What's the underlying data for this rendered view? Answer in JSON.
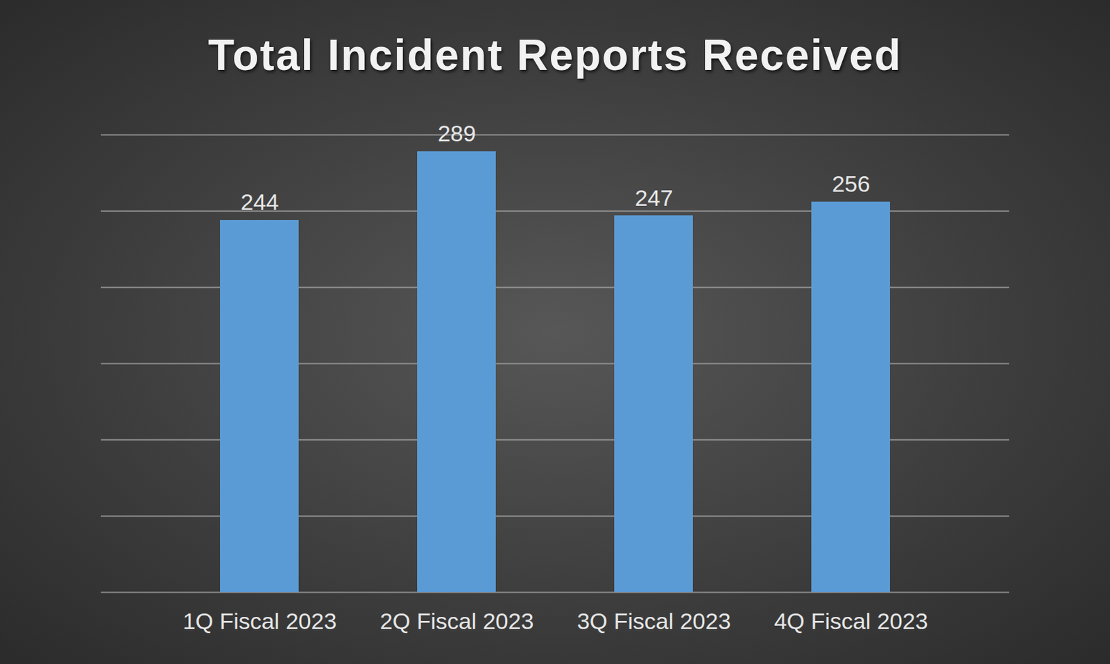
{
  "chart_data": {
    "type": "bar",
    "title": "Total Incident Reports Received",
    "categories": [
      "1Q Fiscal 2023",
      "2Q Fiscal 2023",
      "3Q Fiscal 2023",
      "4Q Fiscal 2023"
    ],
    "values": [
      244,
      289,
      247,
      256
    ],
    "color": "#5b9bd5",
    "ylim": [
      0,
      300
    ],
    "yticks": [
      0,
      50,
      100,
      150,
      200,
      250,
      300
    ],
    "grid": true,
    "data_labels": true,
    "tick_labels": "x"
  }
}
